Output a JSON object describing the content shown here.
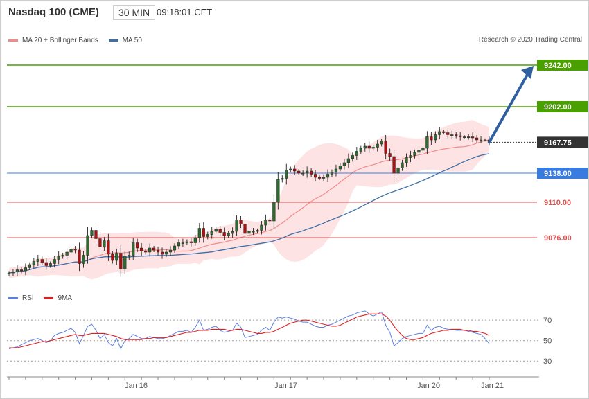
{
  "header": {
    "instrument": "Nasdaq 100 (CME)",
    "timeframe": "30 MIN",
    "time": "09:18:01 CET"
  },
  "legend": {
    "bollinger_label": "MA 20 + Bollinger Bands",
    "ma50_label": "MA 50",
    "bollinger_color": "#f28b8b",
    "ma50_color": "#3d6fa8",
    "copyright": "Research © 2020 Trading Central"
  },
  "rsi_legend": {
    "rsi_label": "RSI",
    "ma9_label": "9MA",
    "rsi_color": "#5b7fe0",
    "ma9_color": "#e02020"
  },
  "chart_data": [
    {
      "type": "candlestick",
      "title": "Nasdaq 100 (CME)",
      "x_labels": [
        "Jan 16",
        "Jan 17",
        "Jan 20",
        "Jan 21"
      ],
      "ylim": [
        9030,
        9262
      ],
      "levels": [
        {
          "value": 9242.0,
          "label": "9242.00",
          "color": "#4aa000",
          "style": "target"
        },
        {
          "value": 9202.0,
          "label": "9202.00",
          "color": "#4aa000",
          "style": "target"
        },
        {
          "value": 9167.75,
          "label": "9167.75",
          "color": "#333333",
          "style": "last"
        },
        {
          "value": 9138.0,
          "label": "9138.00",
          "color": "#3a7be0",
          "style": "pivot"
        },
        {
          "value": 9110.0,
          "label": "9110.00",
          "color": "#e05050",
          "style": "resistance"
        },
        {
          "value": 9076.0,
          "label": "9076.00",
          "color": "#e05050",
          "style": "resistance"
        }
      ],
      "close": [
        9042,
        9043,
        9045,
        9044,
        9047,
        9050,
        9053,
        9055,
        9052,
        9049,
        9051,
        9055,
        9058,
        9059,
        9062,
        9065,
        9064,
        9051,
        9059,
        9078,
        9083,
        9075,
        9067,
        9073,
        9060,
        9054,
        9061,
        9046,
        9058,
        9059,
        9071,
        9066,
        9063,
        9062,
        9066,
        9064,
        9062,
        9060,
        9062,
        9064,
        9068,
        9071,
        9071,
        9072,
        9071,
        9076,
        9085,
        9077,
        9079,
        9082,
        9084,
        9081,
        9078,
        9080,
        9082,
        9093,
        9089,
        9080,
        9082,
        9082,
        9083,
        9088,
        9093,
        9092,
        9110,
        9132,
        9133,
        9141,
        9142,
        9140,
        9138,
        9138,
        9140,
        9137,
        9134,
        9133,
        9134,
        9137,
        9139,
        9142,
        9145,
        9148,
        9152,
        9155,
        9159,
        9162,
        9164,
        9162,
        9163,
        9166,
        9169,
        9157,
        9154,
        9138,
        9143,
        9148,
        9153,
        9155,
        9158,
        9160,
        9162,
        9173,
        9170,
        9175,
        9178,
        9177,
        9175,
        9175,
        9174,
        9173,
        9173,
        9173,
        9172,
        9170,
        9170,
        9170,
        9167.75
      ],
      "lower_pane": {
        "type": "line",
        "series_names": [
          "RSI",
          "9MA"
        ],
        "ticks": [
          70,
          50,
          30
        ],
        "ylim": [
          20,
          85
        ],
        "rsi": [
          42,
          43,
          44,
          46,
          48,
          50,
          51,
          52,
          50,
          48,
          50,
          55,
          57,
          58,
          60,
          62,
          58,
          47,
          55,
          64,
          66,
          60,
          52,
          56,
          48,
          45,
          52,
          42,
          50,
          52,
          56,
          54,
          52,
          52,
          54,
          53,
          52,
          52,
          53,
          55,
          57,
          59,
          59,
          60,
          58,
          63,
          70,
          60,
          61,
          63,
          64,
          60,
          58,
          59,
          60,
          67,
          63,
          53,
          54,
          55,
          56,
          60,
          63,
          60,
          68,
          73,
          72,
          73,
          72,
          71,
          69,
          68,
          68,
          66,
          64,
          63,
          63,
          65,
          66,
          68,
          70,
          72,
          74,
          75,
          77,
          78,
          79,
          76,
          74,
          76,
          78,
          65,
          58,
          45,
          48,
          52,
          54,
          55,
          56,
          57,
          57,
          65,
          60,
          63,
          64,
          62,
          61,
          61,
          60,
          60,
          60,
          59,
          58,
          57,
          56,
          52,
          47
        ],
        "ma9": [
          43,
          43,
          43,
          44,
          45,
          46,
          47,
          48,
          49,
          49,
          50,
          51,
          52,
          53,
          54,
          55,
          56,
          55,
          55,
          56,
          57,
          57,
          57,
          57,
          56,
          55,
          54,
          52,
          51,
          51,
          51,
          51,
          51,
          52,
          52,
          53,
          53,
          53,
          53,
          54,
          55,
          56,
          57,
          58,
          58,
          59,
          60,
          60,
          60,
          61,
          61,
          61,
          61,
          60,
          60,
          61,
          61,
          60,
          59,
          58,
          57,
          57,
          58,
          58,
          59,
          61,
          63,
          65,
          67,
          68,
          69,
          70,
          70,
          69,
          68,
          67,
          66,
          65,
          64,
          64,
          65,
          67,
          69,
          71,
          73,
          74,
          75,
          76,
          76,
          76,
          76,
          74,
          70,
          64,
          59,
          55,
          52,
          51,
          51,
          52,
          53,
          55,
          57,
          58,
          59,
          60,
          60,
          61,
          61,
          61,
          60,
          60,
          59,
          59,
          58,
          57,
          55
        ]
      }
    }
  ]
}
